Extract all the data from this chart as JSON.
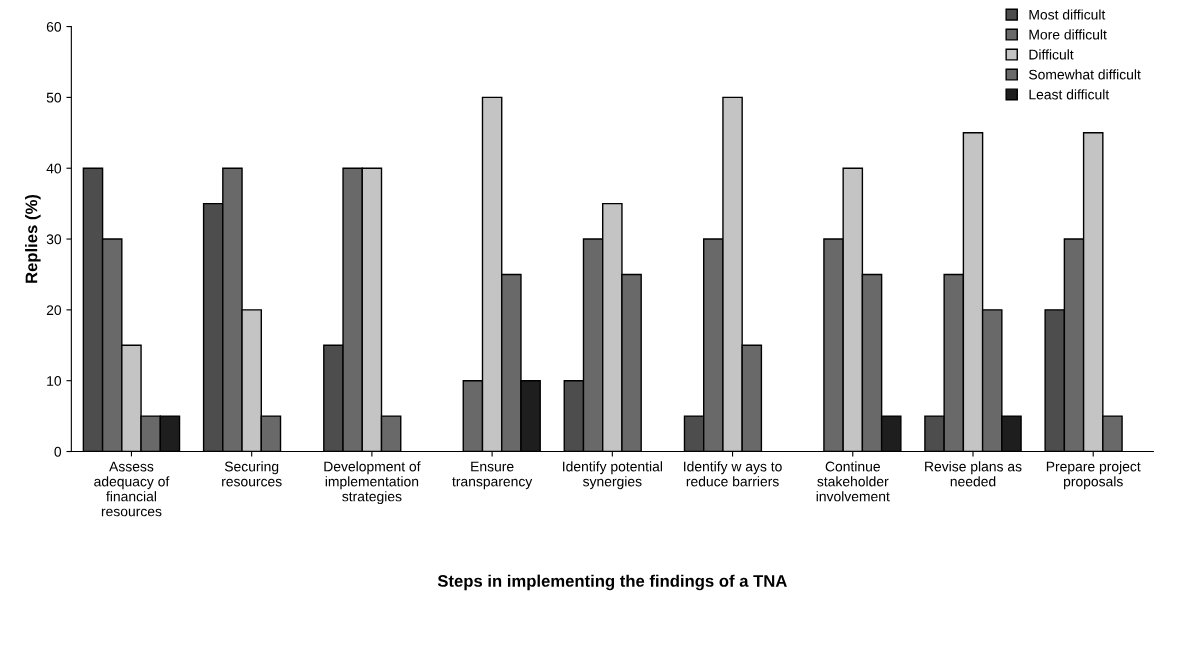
{
  "chart_data": {
    "type": "bar",
    "xlabel": "Steps in implementing the findings of a TNA",
    "ylabel": "Replies (%)",
    "categories": [
      "Assess\nadequacy of\nfinancial\nresources",
      "Securing\nresources",
      "Development of\nimplementation\nstrategies",
      "Ensure\ntransparency",
      "Identify potential\nsynergies",
      "Identify w ays to\nreduce barriers",
      "Continue\nstakeholder\ninvolvement",
      "Revise plans as\nneeded",
      "Prepare project\nproposals"
    ],
    "series": [
      {
        "name": "Most difficult",
        "color": "#4d4d4d",
        "values": [
          40,
          35,
          15,
          null,
          10,
          5,
          null,
          5,
          20
        ]
      },
      {
        "name": "More difficult",
        "color": "#696969",
        "values": [
          30,
          40,
          40,
          10,
          30,
          30,
          30,
          25,
          30
        ]
      },
      {
        "name": "Difficult",
        "color": "#c4c4c4",
        "values": [
          15,
          20,
          40,
          50,
          35,
          50,
          40,
          45,
          45
        ]
      },
      {
        "name": "Somewhat difficult",
        "color": "#696969",
        "values": [
          5,
          5,
          5,
          25,
          25,
          15,
          25,
          20,
          5
        ]
      },
      {
        "name": "Least difficult",
        "color": "#1e1e1e",
        "values": [
          5,
          null,
          null,
          10,
          null,
          null,
          5,
          5,
          null
        ]
      }
    ],
    "ylim": [
      0,
      60
    ],
    "yticks": [
      0,
      10,
      20,
      30,
      40,
      50,
      60
    ],
    "legend": "top right",
    "grid": false
  }
}
